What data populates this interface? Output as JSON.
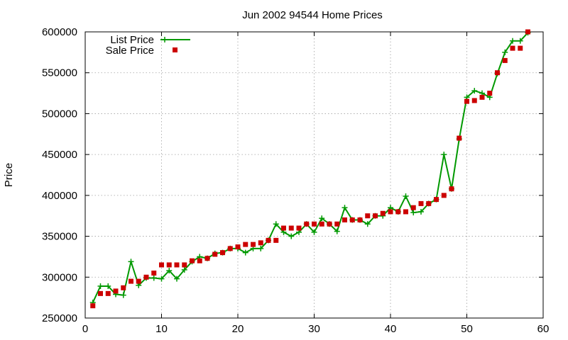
{
  "chart_data": {
    "type": "line",
    "title": "Jun 2002 94544 Home Prices",
    "xlabel": "",
    "ylabel": "Price",
    "xlim": [
      0,
      60
    ],
    "ylim": [
      250000,
      600000
    ],
    "xticks": [
      "0",
      "10",
      "20",
      "30",
      "40",
      "50",
      "60"
    ],
    "yticks": [
      "250000",
      "300000",
      "350000",
      "400000",
      "450000",
      "500000",
      "550000",
      "600000"
    ],
    "grid": true,
    "legend_position": "top-left",
    "series": [
      {
        "name": "List Price",
        "style": "line-with-plus-markers",
        "color": "#009900",
        "x": [
          1,
          2,
          3,
          4,
          5,
          6,
          7,
          8,
          9,
          10,
          11,
          12,
          13,
          14,
          15,
          16,
          17,
          18,
          19,
          20,
          21,
          22,
          23,
          24,
          25,
          26,
          27,
          28,
          29,
          30,
          31,
          32,
          33,
          34,
          35,
          36,
          37,
          38,
          39,
          40,
          41,
          42,
          43,
          44,
          45,
          46,
          47,
          48,
          49,
          50,
          51,
          52,
          53,
          54,
          55,
          56,
          57,
          58
        ],
        "y": [
          269000,
          289000,
          289000,
          279000,
          278000,
          319000,
          290000,
          299000,
          299000,
          298000,
          308000,
          298000,
          309000,
          319000,
          325000,
          323000,
          329000,
          330000,
          335000,
          335000,
          330000,
          335000,
          335000,
          345000,
          365000,
          355000,
          350000,
          355000,
          365000,
          355000,
          372000,
          365000,
          356000,
          385000,
          370000,
          370000,
          365000,
          375000,
          375000,
          385000,
          380000,
          399000,
          379000,
          380000,
          390000,
          395000,
          450000,
          408000,
          469000,
          520000,
          528000,
          525000,
          520000,
          549000,
          575000,
          589000,
          589000,
          599000
        ]
      },
      {
        "name": "Sale Price",
        "style": "square-markers",
        "color": "#cc0000",
        "x": [
          1,
          2,
          3,
          4,
          5,
          6,
          7,
          8,
          9,
          10,
          11,
          12,
          13,
          14,
          15,
          16,
          17,
          18,
          19,
          20,
          21,
          22,
          23,
          24,
          25,
          26,
          27,
          28,
          29,
          30,
          31,
          32,
          33,
          34,
          35,
          36,
          37,
          38,
          39,
          40,
          41,
          42,
          43,
          44,
          45,
          46,
          47,
          48,
          49,
          50,
          51,
          52,
          53,
          54,
          55,
          56,
          57,
          58
        ],
        "y": [
          265000,
          280000,
          280000,
          283000,
          287000,
          295000,
          295000,
          300000,
          305000,
          315000,
          315000,
          315000,
          315000,
          320000,
          320000,
          323000,
          328000,
          330000,
          335000,
          337000,
          340000,
          340000,
          342000,
          345000,
          345000,
          360000,
          360000,
          360000,
          365000,
          365000,
          365000,
          365000,
          365000,
          370000,
          370000,
          370000,
          375000,
          375000,
          378000,
          380000,
          380000,
          380000,
          385000,
          390000,
          390000,
          395000,
          400000,
          408000,
          470000,
          515000,
          516000,
          520000,
          525000,
          550000,
          565000,
          580000,
          580000,
          600000
        ]
      }
    ]
  }
}
